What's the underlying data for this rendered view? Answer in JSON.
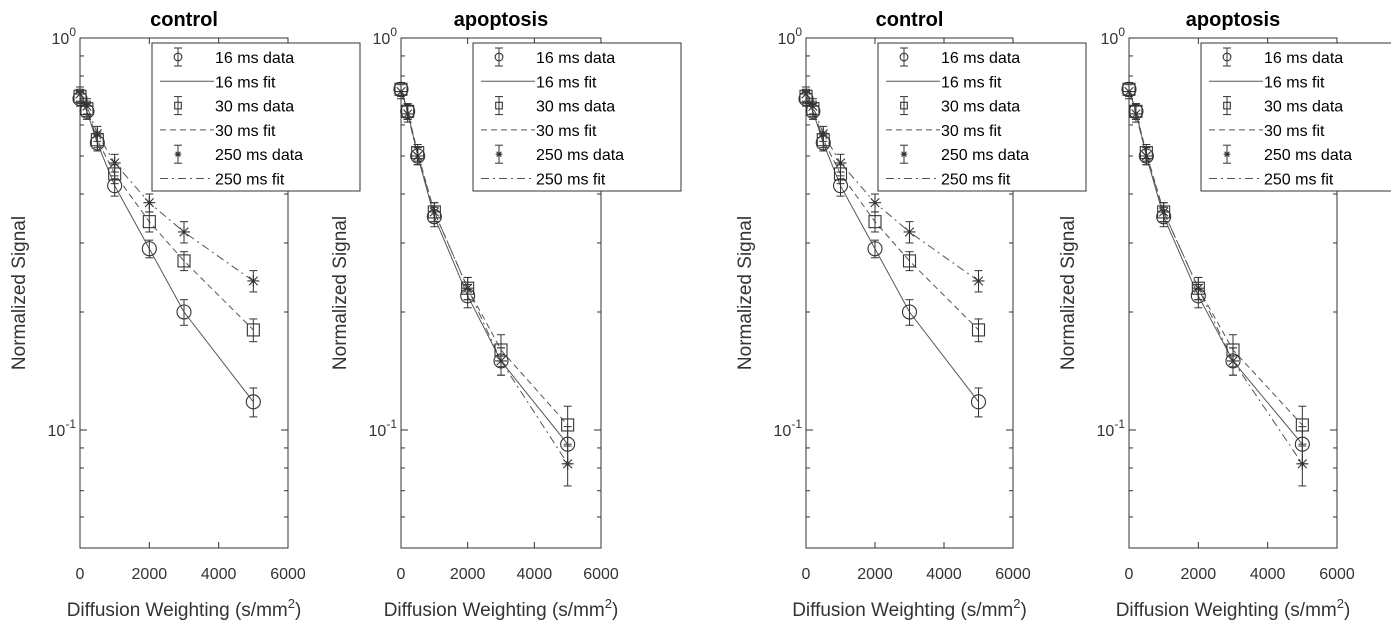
{
  "chart_data": [
    {
      "type": "line",
      "title": "control",
      "xlabel": "Diffusion Weighting (s/mm",
      "xlabel_sup": "2",
      "xlabel_end": ")",
      "ylabel": "Normalized Signal",
      "yscale": "log",
      "xlim": [
        0,
        6000
      ],
      "ylim": [
        0.05,
        1.0
      ],
      "xticks": [
        0,
        2000,
        4000,
        6000
      ],
      "xtick_labels": [
        "0",
        "2000",
        "4000",
        "6000"
      ],
      "yticks": [
        {
          "value": 1.0,
          "base": "10",
          "exp": "0"
        },
        {
          "value": 0.1,
          "base": "10",
          "exp": "-1"
        }
      ],
      "series": [
        {
          "name": "16 ms data",
          "kind": "data",
          "marker": "circle",
          "group": "16",
          "x": [
            0,
            200,
            500,
            1000,
            2000,
            3000,
            5000
          ],
          "y": [
            0.7,
            0.65,
            0.54,
            0.42,
            0.29,
            0.2,
            0.118
          ],
          "err": [
            0.03,
            0.03,
            0.025,
            0.025,
            0.015,
            0.015,
            0.01
          ]
        },
        {
          "name": "16 ms fit",
          "kind": "fit",
          "dash": "solid",
          "group": "16",
          "x": [
            0,
            200,
            500,
            1000,
            2000,
            3000,
            5000
          ],
          "y": [
            0.7,
            0.65,
            0.54,
            0.42,
            0.29,
            0.2,
            0.118
          ]
        },
        {
          "name": "30 ms data",
          "kind": "data",
          "marker": "square",
          "group": "30",
          "x": [
            0,
            200,
            500,
            1000,
            2000,
            3000,
            5000
          ],
          "y": [
            0.71,
            0.66,
            0.55,
            0.45,
            0.34,
            0.27,
            0.18
          ],
          "err": [
            0.03,
            0.03,
            0.025,
            0.025,
            0.02,
            0.015,
            0.012
          ]
        },
        {
          "name": "30 ms fit",
          "kind": "fit",
          "dash": "dashed",
          "group": "30",
          "x": [
            0,
            200,
            500,
            1000,
            2000,
            3000,
            5000
          ],
          "y": [
            0.71,
            0.66,
            0.55,
            0.45,
            0.34,
            0.27,
            0.18
          ]
        },
        {
          "name": "250 ms data",
          "kind": "data",
          "marker": "star",
          "group": "250",
          "x": [
            0,
            200,
            500,
            1000,
            2000,
            3000,
            5000
          ],
          "y": [
            0.72,
            0.67,
            0.57,
            0.48,
            0.38,
            0.32,
            0.24
          ],
          "err": [
            0.03,
            0.03,
            0.025,
            0.025,
            0.02,
            0.02,
            0.015
          ]
        },
        {
          "name": "250 ms fit",
          "kind": "fit",
          "dash": "dashdot",
          "group": "250",
          "x": [
            0,
            200,
            500,
            1000,
            2000,
            3000,
            5000
          ],
          "y": [
            0.72,
            0.67,
            0.57,
            0.48,
            0.38,
            0.32,
            0.24
          ]
        }
      ]
    },
    {
      "type": "line",
      "title": "apoptosis",
      "xlabel": "Diffusion Weighting (s/mm",
      "xlabel_sup": "2",
      "xlabel_end": ")",
      "ylabel": "Normalized Signal",
      "yscale": "log",
      "xlim": [
        0,
        6000
      ],
      "ylim": [
        0.05,
        1.0
      ],
      "xticks": [
        0,
        2000,
        4000,
        6000
      ],
      "xtick_labels": [
        "0",
        "2000",
        "4000",
        "6000"
      ],
      "yticks": [
        {
          "value": 1.0,
          "base": "10",
          "exp": "0"
        },
        {
          "value": 0.1,
          "base": "10",
          "exp": "-1"
        }
      ],
      "series": [
        {
          "name": "16 ms data",
          "kind": "data",
          "marker": "circle",
          "group": "16",
          "x": [
            0,
            200,
            500,
            1000,
            2000,
            3000,
            5000
          ],
          "y": [
            0.74,
            0.65,
            0.5,
            0.35,
            0.22,
            0.15,
            0.092
          ],
          "err": [
            0.03,
            0.03,
            0.025,
            0.02,
            0.015,
            0.012,
            0.01
          ]
        },
        {
          "name": "16 ms fit",
          "kind": "fit",
          "dash": "solid",
          "group": "16",
          "x": [
            0,
            200,
            500,
            1000,
            2000,
            3000,
            5000
          ],
          "y": [
            0.74,
            0.65,
            0.5,
            0.35,
            0.22,
            0.15,
            0.092
          ]
        },
        {
          "name": "30 ms data",
          "kind": "data",
          "marker": "square",
          "group": "30",
          "x": [
            0,
            200,
            500,
            1000,
            2000,
            3000,
            5000
          ],
          "y": [
            0.74,
            0.65,
            0.51,
            0.36,
            0.23,
            0.16,
            0.103
          ],
          "err": [
            0.03,
            0.03,
            0.025,
            0.02,
            0.015,
            0.015,
            0.012
          ]
        },
        {
          "name": "30 ms fit",
          "kind": "fit",
          "dash": "dashed",
          "group": "30",
          "x": [
            0,
            200,
            500,
            1000,
            2000,
            3000,
            5000
          ],
          "y": [
            0.74,
            0.65,
            0.51,
            0.36,
            0.23,
            0.16,
            0.103
          ]
        },
        {
          "name": "250 ms data",
          "kind": "data",
          "marker": "star",
          "group": "250",
          "x": [
            0,
            200,
            500,
            1000,
            2000,
            3000,
            5000
          ],
          "y": [
            0.73,
            0.64,
            0.5,
            0.36,
            0.23,
            0.15,
            0.082
          ],
          "err": [
            0.03,
            0.03,
            0.025,
            0.02,
            0.015,
            0.012,
            0.01
          ]
        },
        {
          "name": "250 ms fit",
          "kind": "fit",
          "dash": "dashdot",
          "group": "250",
          "x": [
            0,
            200,
            500,
            1000,
            2000,
            3000,
            5000
          ],
          "y": [
            0.73,
            0.64,
            0.5,
            0.36,
            0.23,
            0.15,
            0.082
          ]
        }
      ]
    },
    {
      "type": "line",
      "title": "control",
      "xlabel": "Diffusion Weighting (s/mm",
      "xlabel_sup": "2",
      "xlabel_end": ")",
      "ylabel": "Normalized Signal",
      "yscale": "log",
      "xlim": [
        0,
        6000
      ],
      "ylim": [
        0.05,
        1.0
      ],
      "xticks": [
        0,
        2000,
        4000,
        6000
      ],
      "xtick_labels": [
        "0",
        "2000",
        "4000",
        "6000"
      ],
      "yticks": [
        {
          "value": 1.0,
          "base": "10",
          "exp": "0"
        },
        {
          "value": 0.1,
          "base": "10",
          "exp": "-1"
        }
      ],
      "series": [
        {
          "name": "16 ms data",
          "kind": "data",
          "marker": "circle",
          "group": "16",
          "x": [
            0,
            200,
            500,
            1000,
            2000,
            3000,
            5000
          ],
          "y": [
            0.7,
            0.65,
            0.54,
            0.42,
            0.29,
            0.2,
            0.118
          ],
          "err": [
            0.03,
            0.03,
            0.025,
            0.025,
            0.015,
            0.015,
            0.01
          ]
        },
        {
          "name": "16 ms fit",
          "kind": "fit",
          "dash": "solid",
          "group": "16",
          "x": [
            0,
            200,
            500,
            1000,
            2000,
            3000,
            5000
          ],
          "y": [
            0.7,
            0.65,
            0.54,
            0.42,
            0.29,
            0.2,
            0.118
          ]
        },
        {
          "name": "30 ms data",
          "kind": "data",
          "marker": "square",
          "group": "30",
          "x": [
            0,
            200,
            500,
            1000,
            2000,
            3000,
            5000
          ],
          "y": [
            0.71,
            0.66,
            0.55,
            0.45,
            0.34,
            0.27,
            0.18
          ],
          "err": [
            0.03,
            0.03,
            0.025,
            0.025,
            0.02,
            0.015,
            0.012
          ]
        },
        {
          "name": "30 ms fit",
          "kind": "fit",
          "dash": "dashed",
          "group": "30",
          "x": [
            0,
            200,
            500,
            1000,
            2000,
            3000,
            5000
          ],
          "y": [
            0.71,
            0.66,
            0.55,
            0.45,
            0.34,
            0.27,
            0.18
          ]
        },
        {
          "name": "250 ms data",
          "kind": "data",
          "marker": "star",
          "group": "250",
          "x": [
            0,
            200,
            500,
            1000,
            2000,
            3000,
            5000
          ],
          "y": [
            0.72,
            0.67,
            0.57,
            0.48,
            0.38,
            0.32,
            0.24
          ],
          "err": [
            0.03,
            0.03,
            0.025,
            0.025,
            0.02,
            0.02,
            0.015
          ]
        },
        {
          "name": "250 ms fit",
          "kind": "fit",
          "dash": "dashdot",
          "group": "250",
          "x": [
            0,
            200,
            500,
            1000,
            2000,
            3000,
            5000
          ],
          "y": [
            0.72,
            0.67,
            0.57,
            0.48,
            0.38,
            0.32,
            0.24
          ]
        }
      ]
    },
    {
      "type": "line",
      "title": "apoptosis",
      "xlabel": "Diffusion Weighting (s/mm",
      "xlabel_sup": "2",
      "xlabel_end": ")",
      "ylabel": "Normalized Signal",
      "yscale": "log",
      "xlim": [
        0,
        6000
      ],
      "ylim": [
        0.05,
        1.0
      ],
      "xticks": [
        0,
        2000,
        4000,
        6000
      ],
      "xtick_labels": [
        "0",
        "2000",
        "4000",
        "6000"
      ],
      "yticks": [
        {
          "value": 1.0,
          "base": "10",
          "exp": "0"
        },
        {
          "value": 0.1,
          "base": "10",
          "exp": "-1"
        }
      ],
      "series": [
        {
          "name": "16 ms data",
          "kind": "data",
          "marker": "circle",
          "group": "16",
          "x": [
            0,
            200,
            500,
            1000,
            2000,
            3000,
            5000
          ],
          "y": [
            0.74,
            0.65,
            0.5,
            0.35,
            0.22,
            0.15,
            0.092
          ],
          "err": [
            0.03,
            0.03,
            0.025,
            0.02,
            0.015,
            0.012,
            0.01
          ]
        },
        {
          "name": "16 ms fit",
          "kind": "fit",
          "dash": "solid",
          "group": "16",
          "x": [
            0,
            200,
            500,
            1000,
            2000,
            3000,
            5000
          ],
          "y": [
            0.74,
            0.65,
            0.5,
            0.35,
            0.22,
            0.15,
            0.092
          ]
        },
        {
          "name": "30 ms data",
          "kind": "data",
          "marker": "square",
          "group": "30",
          "x": [
            0,
            200,
            500,
            1000,
            2000,
            3000,
            5000
          ],
          "y": [
            0.74,
            0.65,
            0.51,
            0.36,
            0.23,
            0.16,
            0.103
          ],
          "err": [
            0.03,
            0.03,
            0.025,
            0.02,
            0.015,
            0.015,
            0.012
          ]
        },
        {
          "name": "30 ms fit",
          "kind": "fit",
          "dash": "dashed",
          "group": "30",
          "x": [
            0,
            200,
            500,
            1000,
            2000,
            3000,
            5000
          ],
          "y": [
            0.74,
            0.65,
            0.51,
            0.36,
            0.23,
            0.16,
            0.103
          ]
        },
        {
          "name": "250 ms data",
          "kind": "data",
          "marker": "star",
          "group": "250",
          "x": [
            0,
            200,
            500,
            1000,
            2000,
            3000,
            5000
          ],
          "y": [
            0.73,
            0.64,
            0.5,
            0.36,
            0.23,
            0.15,
            0.082
          ],
          "err": [
            0.03,
            0.03,
            0.025,
            0.02,
            0.015,
            0.012,
            0.01
          ]
        },
        {
          "name": "250 ms fit",
          "kind": "fit",
          "dash": "dashdot",
          "group": "250",
          "x": [
            0,
            200,
            500,
            1000,
            2000,
            3000,
            5000
          ],
          "y": [
            0.73,
            0.64,
            0.5,
            0.36,
            0.23,
            0.15,
            0.082
          ]
        }
      ]
    }
  ]
}
